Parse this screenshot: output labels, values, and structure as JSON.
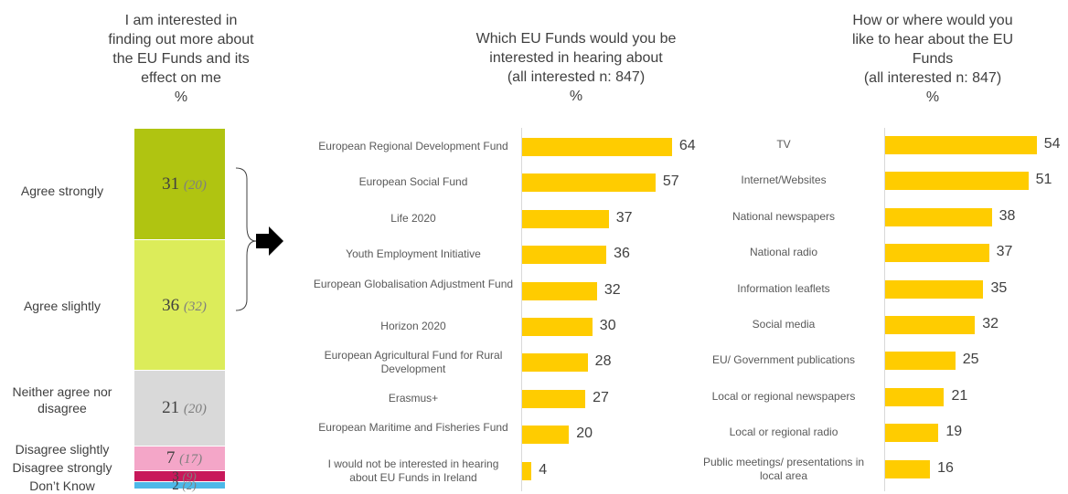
{
  "chart_data": [
    {
      "type": "bar",
      "orientation": "stacked-vertical",
      "title": "I am interested in\nfinding out more about\nthe EU Funds and its\neffect on me\n%",
      "categories": [
        "Agree strongly",
        "Agree slightly",
        "Neither agree nor disagree",
        "Disagree slightly",
        "Disagree strongly",
        "Don’t Know"
      ],
      "values": [
        31,
        36,
        21,
        7,
        3,
        2
      ],
      "previous_values": [
        "(20)",
        "(32)",
        "(20)",
        "(17)",
        "(9)",
        "(2)"
      ],
      "colors": [
        "#b0c411",
        "#dcec5a",
        "#d9d9d9",
        "#f4a6c8",
        "#c8185a",
        "#4db8e8"
      ]
    },
    {
      "type": "bar",
      "orientation": "horizontal",
      "title": "Which EU Funds would you be\ninterested in hearing about\n(all interested n: 847)\n%",
      "categories": [
        "European Regional Development Fund",
        "European Social Fund",
        "Life 2020",
        "Youth Employment Initiative",
        "European Globalisation Adjustment Fund",
        "Horizon 2020",
        "European Agricultural Fund for Rural Development",
        "Erasmus+",
        "European Maritime and Fisheries Fund",
        "I would not be interested in hearing about EU Funds in Ireland"
      ],
      "values": [
        64,
        57,
        37,
        36,
        32,
        30,
        28,
        27,
        20,
        4
      ],
      "color": "#ffcc00"
    },
    {
      "type": "bar",
      "orientation": "horizontal",
      "title": "How or where would you\nlike to hear about the EU\nFunds\n(all interested n: 847)\n%",
      "categories": [
        "TV",
        "Internet/Websites",
        "National newspapers",
        "National radio",
        "Information leaflets",
        "Social media",
        "EU/ Government publications",
        "Local or regional newspapers",
        "Local or regional radio",
        "Public meetings/ presentations in local area"
      ],
      "values": [
        54,
        51,
        38,
        37,
        35,
        32,
        25,
        21,
        19,
        16
      ],
      "color": "#ffcc00"
    }
  ]
}
